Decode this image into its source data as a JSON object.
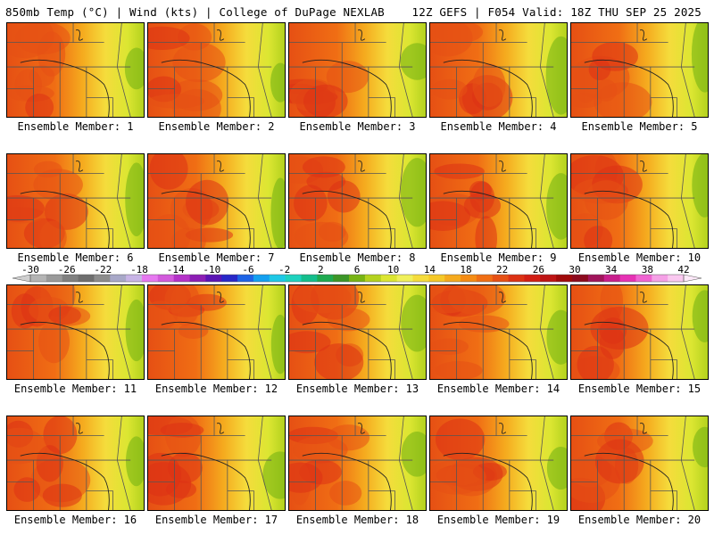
{
  "header": {
    "left": "850mb Temp (°C) | Wind (kts) | College of DuPage NEXLAB",
    "right": "12Z GEFS | F054 Valid: 18Z THU SEP 25 2025"
  },
  "panels": [
    {
      "label": "Ensemble Member: 1"
    },
    {
      "label": "Ensemble Member: 2"
    },
    {
      "label": "Ensemble Member: 3"
    },
    {
      "label": "Ensemble Member: 4"
    },
    {
      "label": "Ensemble Member: 5"
    },
    {
      "label": "Ensemble Member: 6"
    },
    {
      "label": "Ensemble Member: 7"
    },
    {
      "label": "Ensemble Member: 8"
    },
    {
      "label": "Ensemble Member: 9"
    },
    {
      "label": "Ensemble Member: 10"
    },
    {
      "label": "Ensemble Member: 11"
    },
    {
      "label": "Ensemble Member: 12"
    },
    {
      "label": "Ensemble Member: 13"
    },
    {
      "label": "Ensemble Member: 14"
    },
    {
      "label": "Ensemble Member: 15"
    },
    {
      "label": "Ensemble Member: 16"
    },
    {
      "label": "Ensemble Member: 17"
    },
    {
      "label": "Ensemble Member: 18"
    },
    {
      "label": "Ensemble Member: 19"
    },
    {
      "label": "Ensemble Member: 20"
    }
  ],
  "colorbar": {
    "tick_labels": [
      "-30",
      "-26",
      "-22",
      "-18",
      "-14",
      "-10",
      "-6",
      "-2",
      "2",
      "6",
      "10",
      "14",
      "18",
      "22",
      "26",
      "30",
      "34",
      "38",
      "42"
    ],
    "colors": [
      "#b4b4b4",
      "#9a9a9a",
      "#808080",
      "#6e6e6e",
      "#8c8c8c",
      "#a8a8c8",
      "#c8b4e6",
      "#e678f0",
      "#d25adc",
      "#b432c8",
      "#8c1eb4",
      "#5a14b4",
      "#2828c8",
      "#1e64e6",
      "#14a0f0",
      "#1ec8e6",
      "#1ed2be",
      "#14be8c",
      "#1eaa50",
      "#3c9628",
      "#78b414",
      "#b4d21e",
      "#dce632",
      "#f0f05a",
      "#f5dc3c",
      "#f5c828",
      "#f5aa1e",
      "#f58c14",
      "#f06e14",
      "#e65014",
      "#dc3214",
      "#d21e14",
      "#be1414",
      "#a00a0a",
      "#8c0a1e",
      "#a0145a",
      "#c81e8c",
      "#e632b4",
      "#f064d2",
      "#f5a0e6",
      "#fac8f0"
    ],
    "range": [
      -30,
      42
    ]
  }
}
